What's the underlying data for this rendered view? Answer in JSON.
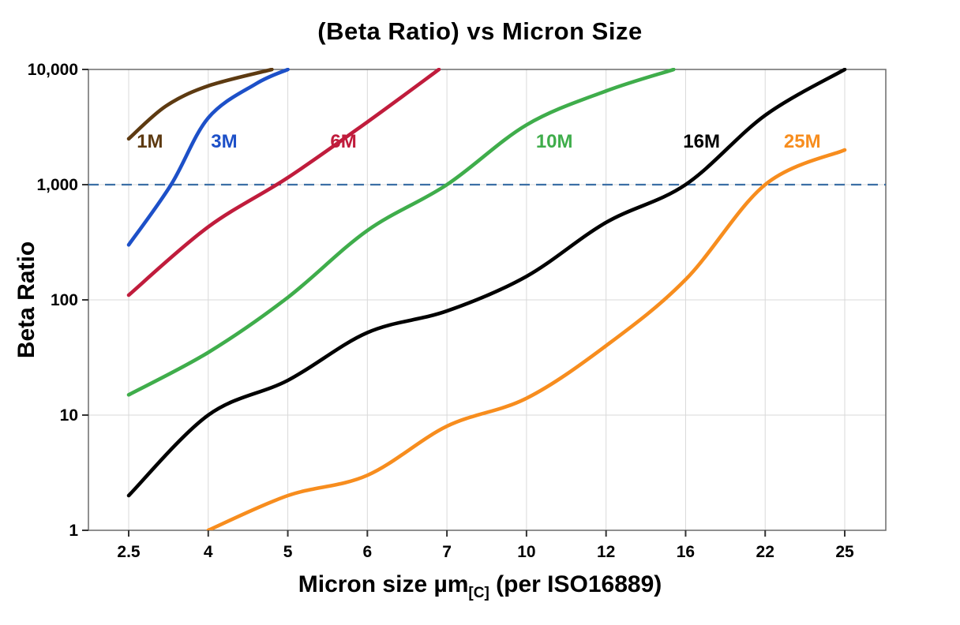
{
  "chart_data": {
    "type": "line",
    "title": "(Beta Ratio) vs Micron Size",
    "ylabel": "Beta Ratio",
    "xlabel_parts": {
      "main": "Micron size µm",
      "sub": "[C]",
      "suffix": " (per ISO16889)"
    },
    "x_axis": {
      "scale": "categorical-equal-spacing",
      "categories": [
        2.5,
        4,
        5,
        6,
        7,
        10,
        12,
        16,
        22,
        25
      ],
      "tick_labels": [
        "2.5",
        "4",
        "5",
        "6",
        "7",
        "10",
        "12",
        "16",
        "22",
        "25"
      ]
    },
    "y_axis": {
      "scale": "log",
      "min": 1,
      "max": 10000,
      "tick_values": [
        1,
        10,
        100,
        1000,
        10000
      ],
      "tick_labels": [
        "1",
        "10",
        "100",
        "1,000",
        "10,000"
      ]
    },
    "grid": {
      "show": true,
      "color": "#d9d9d9"
    },
    "reference_line": {
      "value": 1000,
      "style": "dashed",
      "color": "#3c6fa5"
    },
    "series": [
      {
        "name": "1M",
        "color": "#5d3a11",
        "label_pos": {
          "x": 2.9,
          "y": 2100
        },
        "points": [
          [
            2.5,
            2500
          ],
          [
            3.2,
            4800
          ],
          [
            4,
            7200
          ],
          [
            4.8,
            10000
          ]
        ]
      },
      {
        "name": "3M",
        "color": "#1d50c8",
        "label_pos": {
          "x": 4.2,
          "y": 2100
        },
        "points": [
          [
            2.5,
            300
          ],
          [
            3.3,
            1000
          ],
          [
            4,
            3800
          ],
          [
            4.6,
            7500
          ],
          [
            5,
            10000
          ]
        ]
      },
      {
        "name": "6M",
        "color": "#c01c3c",
        "label_pos": {
          "x": 5.7,
          "y": 2100
        },
        "points": [
          [
            2.5,
            110
          ],
          [
            4,
            430
          ],
          [
            5,
            1150
          ],
          [
            6,
            3500
          ],
          [
            6.9,
            10000
          ]
        ]
      },
      {
        "name": "10M",
        "color": "#3fad4b",
        "label_pos": {
          "x": 10.7,
          "y": 2100
        },
        "points": [
          [
            2.5,
            15
          ],
          [
            4,
            35
          ],
          [
            5,
            105
          ],
          [
            6,
            400
          ],
          [
            7,
            1000
          ],
          [
            10,
            3300
          ],
          [
            12,
            6500
          ],
          [
            15.4,
            10000
          ]
        ]
      },
      {
        "name": "16M",
        "color": "#000000",
        "label_pos": {
          "x": 17.2,
          "y": 2100
        },
        "points": [
          [
            2.5,
            2
          ],
          [
            4,
            10
          ],
          [
            5,
            20
          ],
          [
            6,
            52
          ],
          [
            7,
            80
          ],
          [
            10,
            160
          ],
          [
            12,
            470
          ],
          [
            16,
            1000
          ],
          [
            22,
            4000
          ],
          [
            25,
            10000
          ]
        ]
      },
      {
        "name": "25M",
        "color": "#f78d1e",
        "label_pos": {
          "x": 23.4,
          "y": 2100
        },
        "points": [
          [
            4,
            1
          ],
          [
            5,
            2
          ],
          [
            6,
            3
          ],
          [
            7,
            8
          ],
          [
            10,
            14
          ],
          [
            12,
            40
          ],
          [
            16,
            150
          ],
          [
            22,
            1000
          ],
          [
            25,
            2000
          ]
        ]
      }
    ]
  }
}
